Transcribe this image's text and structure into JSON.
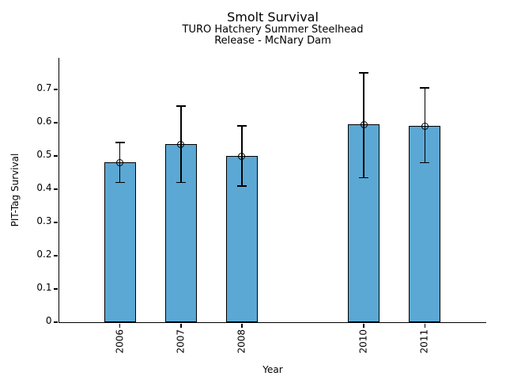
{
  "chart_data": {
    "type": "bar",
    "title": "Smolt Survival",
    "subtitle1": "TURO Hatchery Summer Steelhead",
    "subtitle2": "Release - McNary Dam",
    "xlabel": "Year",
    "ylabel": "PIT-Tag Survival",
    "categories": [
      "2006",
      "2007",
      "2008",
      "2010",
      "2011"
    ],
    "x_years": [
      2006,
      2007,
      2008,
      2010,
      2011
    ],
    "values": [
      0.48,
      0.535,
      0.5,
      0.595,
      0.59
    ],
    "error_low": [
      0.42,
      0.42,
      0.41,
      0.435,
      0.48
    ],
    "error_high": [
      0.54,
      0.65,
      0.59,
      0.75,
      0.705
    ],
    "ytick_values": [
      0,
      0.1,
      0.2,
      0.3,
      0.4,
      0.5,
      0.6,
      0.7
    ],
    "ytick_labels": [
      "0",
      "0.1",
      "0.2",
      "0.3",
      "0.4",
      "0.5",
      "0.6",
      "0.7"
    ],
    "ylim": [
      0,
      0.795
    ],
    "xlim": [
      2005,
      2012
    ],
    "grid": false,
    "legend": "none",
    "x_tick_label_rotation_deg": -90,
    "bar_color": "#5BA8D4",
    "bar_edge_color": "#000000",
    "error_bar_color": "#000000",
    "marker": "open-circle"
  }
}
